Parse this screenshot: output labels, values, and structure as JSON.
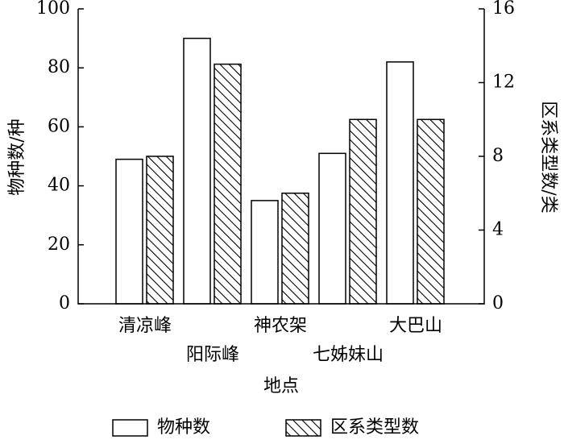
{
  "chart_data": {
    "type": "bar",
    "x_label": "地点",
    "y_label": "物种数/种",
    "y2_label": "区系类型数/类",
    "categories": [
      "清凉峰",
      "阳际峰",
      "神农架",
      "七姊妹山",
      "大巴山"
    ],
    "series": [
      {
        "name": "物种数",
        "color": "#ffffff",
        "values": [
          49,
          90,
          35,
          51,
          82
        ]
      },
      {
        "name": "区系类型数",
        "color": "hatch",
        "axis": "y2",
        "values": [
          8,
          13,
          6,
          10,
          10
        ]
      }
    ],
    "ylim": [
      0,
      100
    ],
    "yticks": [
      0,
      20,
      40,
      60,
      80,
      100
    ],
    "y2lim": [
      0,
      16
    ],
    "y2ticks": [
      0,
      4,
      8,
      12,
      16
    ]
  }
}
